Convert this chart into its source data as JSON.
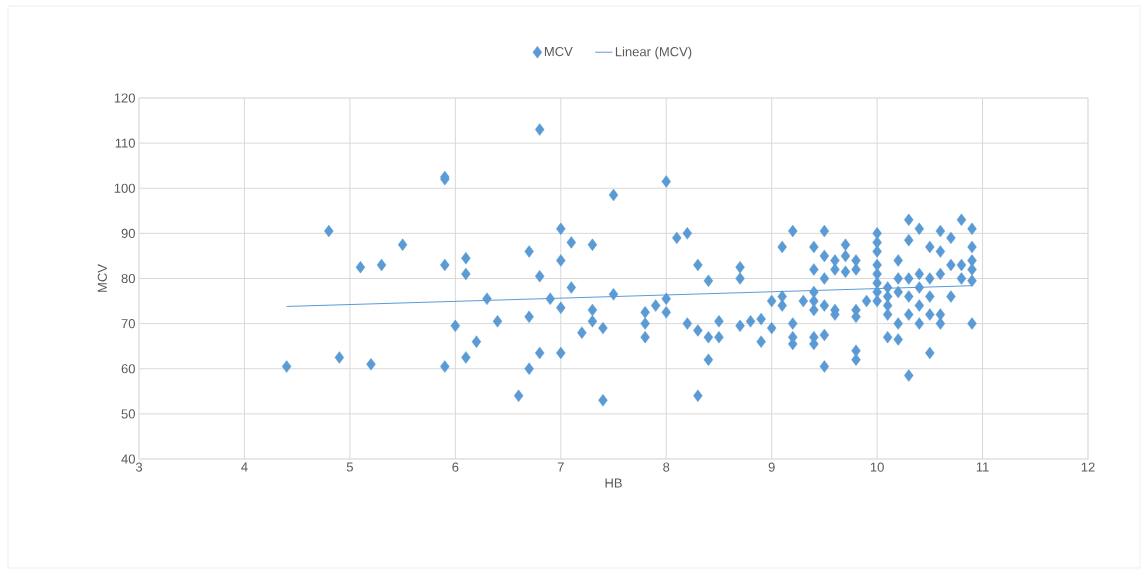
{
  "chart_data": {
    "type": "scatter",
    "xlabel": "HB",
    "ylabel": "MCV",
    "xlim": [
      3,
      12
    ],
    "ylim": [
      40,
      120
    ],
    "xticks": [
      3,
      4,
      5,
      6,
      7,
      8,
      9,
      10,
      11,
      12
    ],
    "yticks": [
      40,
      50,
      60,
      70,
      80,
      90,
      100,
      110,
      120
    ],
    "grid": true,
    "legend": "top",
    "series": [
      {
        "name": "MCV",
        "marker": "diamond",
        "color": "#5b9bd5",
        "x": [
          4.4,
          4.8,
          4.9,
          5.1,
          5.2,
          5.3,
          5.5,
          5.9,
          5.9,
          5.9,
          5.9,
          6.0,
          6.1,
          6.1,
          6.1,
          6.2,
          6.3,
          6.4,
          6.6,
          6.7,
          6.7,
          6.7,
          6.8,
          6.8,
          6.8,
          6.9,
          7.0,
          7.0,
          7.0,
          7.0,
          7.1,
          7.1,
          7.2,
          7.3,
          7.3,
          7.3,
          7.4,
          7.4,
          7.5,
          7.5,
          7.8,
          7.8,
          7.8,
          7.9,
          8.0,
          8.0,
          8.0,
          8.1,
          8.2,
          8.2,
          8.3,
          8.3,
          8.3,
          8.4,
          8.4,
          8.4,
          8.5,
          8.5,
          8.7,
          8.7,
          8.7,
          8.8,
          8.9,
          8.9,
          9.0,
          9.0,
          9.1,
          9.1,
          9.1,
          9.2,
          9.2,
          9.2,
          9.2,
          9.3,
          9.4,
          9.4,
          9.4,
          9.4,
          9.4,
          9.4,
          9.4,
          9.5,
          9.5,
          9.5,
          9.5,
          9.5,
          9.5,
          9.6,
          9.6,
          9.6,
          9.6,
          9.7,
          9.7,
          9.7,
          9.8,
          9.8,
          9.8,
          9.8,
          9.8,
          9.8,
          9.9,
          10,
          10,
          10,
          10,
          10,
          10,
          10,
          10,
          10.1,
          10.1,
          10.1,
          10.1,
          10.1,
          10.2,
          10.2,
          10.2,
          10.2,
          10.2,
          10.3,
          10.3,
          10.3,
          10.3,
          10.3,
          10.3,
          10.4,
          10.4,
          10.4,
          10.4,
          10.4,
          10.5,
          10.5,
          10.5,
          10.5,
          10.5,
          10.6,
          10.6,
          10.6,
          10.6,
          10.6,
          10.7,
          10.7,
          10.7,
          10.8,
          10.8,
          10.8,
          10.9,
          10.9,
          10.9,
          10.9,
          10.9,
          10.9
        ],
        "values": [
          60.5,
          90.5,
          62.5,
          82.5,
          61,
          83,
          87.5,
          102.5,
          102,
          83,
          60.5,
          69.5,
          84.5,
          81,
          62.5,
          66,
          75.5,
          70.5,
          54,
          86,
          71.5,
          60,
          113,
          80.5,
          63.5,
          75.5,
          91,
          84,
          73.5,
          63.5,
          88,
          78,
          68,
          87.5,
          73,
          70.5,
          69,
          53,
          98.5,
          76.5,
          72.5,
          70,
          67,
          74,
          101.5,
          75.5,
          72.5,
          89,
          90,
          70,
          83,
          68.5,
          54,
          79.5,
          67,
          62,
          70.5,
          67,
          82.5,
          80,
          69.5,
          70.5,
          71,
          66,
          75,
          69,
          87,
          76,
          74,
          90.5,
          70,
          67,
          65.5,
          75,
          87,
          82,
          77,
          75,
          73,
          67,
          65.5,
          90.5,
          85,
          80,
          74,
          67.5,
          60.5,
          84,
          82,
          73,
          72,
          87.5,
          85,
          81.5,
          84,
          82,
          73,
          71.5,
          64,
          62,
          75,
          90,
          88,
          86,
          83,
          81,
          79,
          77,
          75,
          78,
          76,
          74,
          72,
          67,
          84,
          80,
          77,
          70,
          66.5,
          93,
          88.5,
          80,
          76,
          72,
          58.5,
          91,
          81,
          78,
          74,
          70,
          87,
          80,
          76,
          72,
          63.5,
          90.5,
          86,
          81,
          72,
          70,
          89,
          83,
          76,
          93,
          83,
          80,
          91,
          87,
          84,
          82,
          79.5,
          70
        ]
      },
      {
        "name": "Linear (MCV)",
        "type": "line",
        "color": "#5b9bd5",
        "x": [
          4.4,
          10.9
        ],
        "values": [
          73.8,
          78.4
        ]
      }
    ]
  }
}
